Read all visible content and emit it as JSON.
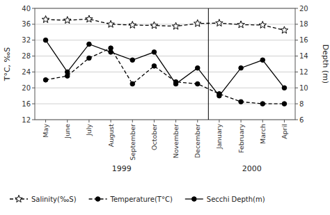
{
  "chart_data": {
    "type": "line",
    "categories": [
      "May",
      "June",
      "July",
      "August",
      "September",
      "October",
      "November",
      "December",
      "January",
      "February",
      "March",
      "April"
    ],
    "series": [
      {
        "name": "Salinity(‰S)",
        "color": "black",
        "marker": "star",
        "line_style": "dashed",
        "values": [
          37.2,
          37.0,
          37.3,
          36.0,
          35.8,
          35.7,
          35.5,
          36.2,
          36.3,
          35.9,
          35.8,
          34.5
        ]
      },
      {
        "name": "Temperature(T°C)",
        "color": "black",
        "marker": "circle",
        "line_style": "dashed",
        "values": [
          22.0,
          23.0,
          27.5,
          30.0,
          21.0,
          25.5,
          21.5,
          21.0,
          18.5,
          16.5,
          16.0,
          16.0
        ]
      },
      {
        "name": "Secchi Depth(m)",
        "color": "black",
        "marker": "circle",
        "line_style": "solid",
        "axis": "y2",
        "values": [
          16.0,
          12.0,
          15.5,
          14.5,
          13.5,
          14.5,
          10.5,
          12.5,
          9.0,
          12.5,
          13.5,
          10.0
        ]
      }
    ],
    "ylabel": "T°C, ‰S",
    "y2label": "Depth (m)",
    "ylim": [
      12,
      40
    ],
    "yticks": [
      12,
      16,
      20,
      24,
      28,
      32,
      36,
      40
    ],
    "y2lim": [
      6,
      20
    ],
    "y2ticks": [
      6,
      8,
      10,
      12,
      14,
      16,
      18,
      20
    ],
    "grid": true,
    "legend": "lower left",
    "annotations": [
      {
        "text": "1999",
        "x": 3.5
      },
      {
        "text": "2000",
        "x": 9.5
      }
    ],
    "vlines": [
      7.5
    ]
  }
}
